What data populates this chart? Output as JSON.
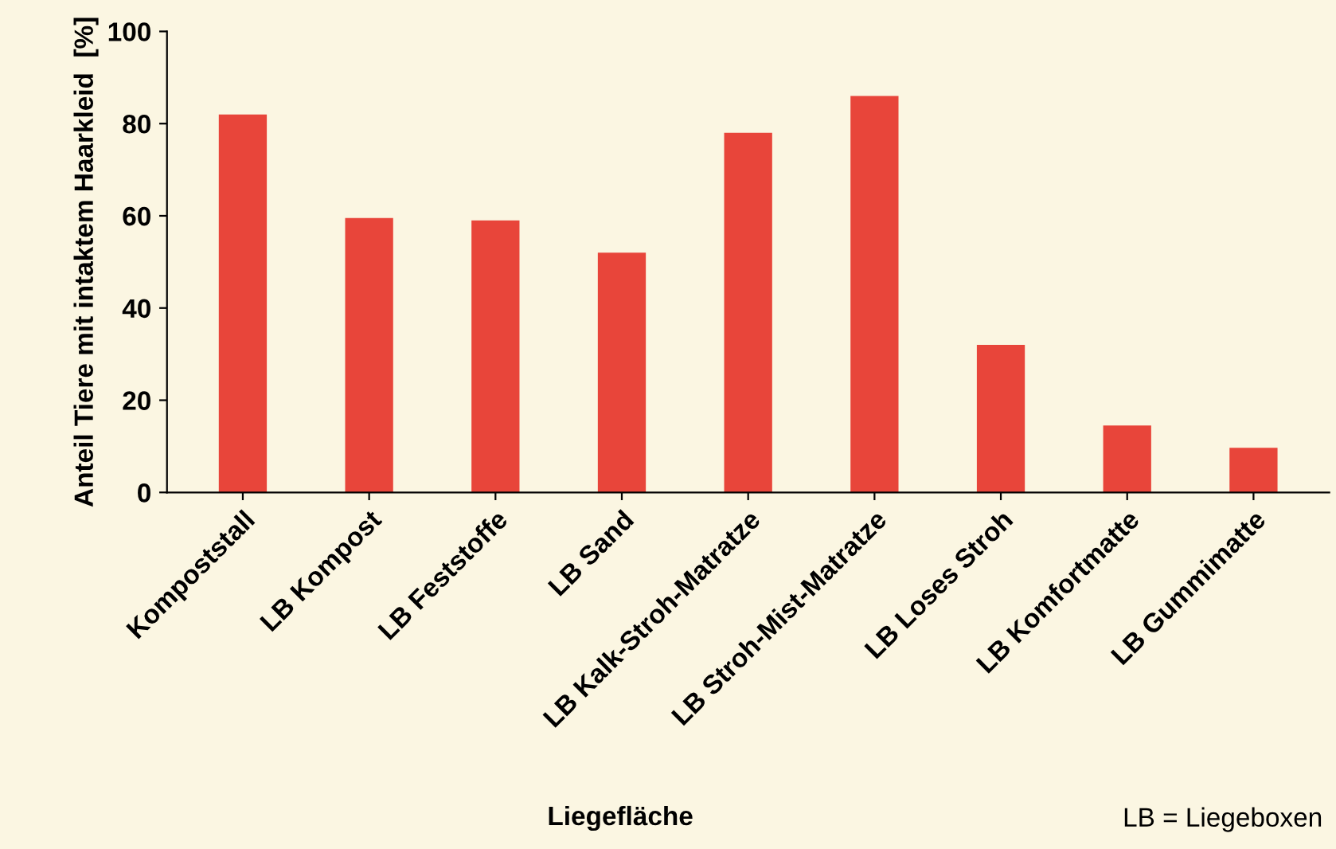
{
  "chart_data": {
    "type": "bar",
    "xlabel": "Liegefläche",
    "ylabel": "Anteil Tiere mit intaktem Haarkleid  [%]",
    "categories": [
      "Kompoststall",
      "LB Kompost",
      "LB Feststoffe",
      "LB Sand",
      "LB Kalk-Stroh-Matratze",
      "LB Stroh-Mist-Matratze",
      "LB Loses Stroh",
      "LB Komfortmatte",
      "LB Gummimatte"
    ],
    "values": [
      82,
      59.5,
      59,
      52,
      78,
      86,
      32,
      14.5,
      9.7
    ],
    "color": "#e8453a",
    "ylim": [
      0,
      100
    ],
    "yticks": [
      0,
      20,
      40,
      60,
      80,
      100
    ],
    "grid": false,
    "legend": false,
    "annotations": [
      "LB = Liegeboxen"
    ]
  }
}
